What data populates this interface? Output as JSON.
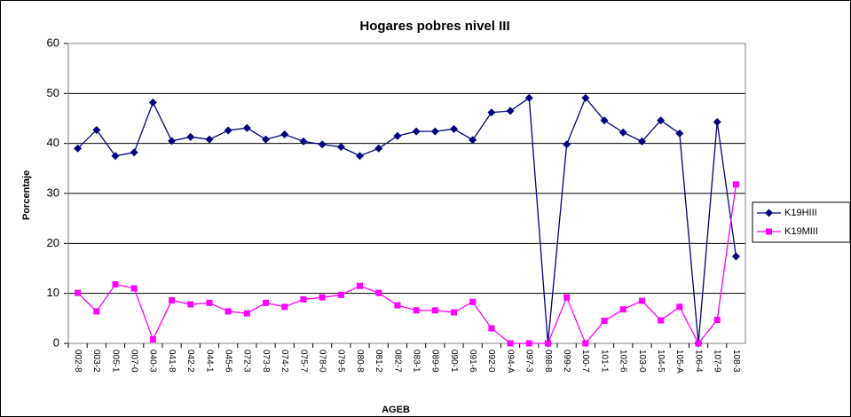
{
  "chart_data": {
    "type": "line",
    "title": "Hogares pobres nivel III",
    "x_label": "AGEB",
    "y_label": "Porcentaje",
    "categories": [
      "002-8",
      "003-2",
      "005-1",
      "007-0",
      "040-3",
      "041-8",
      "042-2",
      "044-1",
      "045-6",
      "072-3",
      "073-8",
      "074-2",
      "075-7",
      "078-0",
      "079-5",
      "080-8",
      "081-2",
      "082-7",
      "083-1",
      "089-9",
      "090-1",
      "091-6",
      "092-0",
      "094-A",
      "097-3",
      "098-8",
      "099-2",
      "100-7",
      "101-1",
      "102-6",
      "103-0",
      "104-5",
      "105-A",
      "106-4",
      "107-9",
      "108-3"
    ],
    "series": [
      {
        "name": "K19HIII",
        "color": "#000080",
        "marker": "diamond",
        "values": [
          39,
          42.7,
          37.5,
          38.2,
          48.2,
          40.5,
          41.3,
          40.8,
          42.6,
          43.1,
          40.8,
          41.8,
          40.4,
          39.8,
          39.3,
          37.5,
          39,
          41.5,
          42.4,
          42.4,
          42.9,
          40.7,
          46.2,
          46.5,
          49.1,
          0,
          39.8,
          49.1,
          44.6,
          42.2,
          40.4,
          44.6,
          42,
          0,
          44.3,
          17.4
        ]
      },
      {
        "name": "K19MIII",
        "color": "#ff00ff",
        "marker": "square",
        "values": [
          10.1,
          6.4,
          11.8,
          11,
          0.8,
          8.6,
          7.8,
          8.1,
          6.4,
          6,
          8.1,
          7.3,
          8.8,
          9.2,
          9.7,
          11.5,
          10.1,
          7.6,
          6.6,
          6.6,
          6.2,
          8.3,
          3,
          0,
          0,
          0,
          9.2,
          0,
          4.5,
          6.8,
          8.5,
          4.6,
          7.3,
          0,
          4.7,
          31.8
        ]
      }
    ],
    "ylim": [
      0,
      60
    ],
    "yticks": [
      0,
      10,
      20,
      30,
      40,
      50,
      60
    ],
    "grid": true,
    "legend": "right"
  }
}
